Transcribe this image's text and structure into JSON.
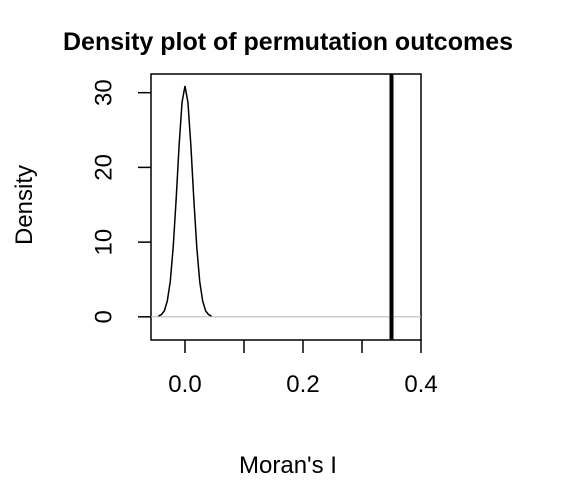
{
  "chart_data": {
    "type": "line",
    "title": "Density plot of permutation outcomes",
    "xlabel": "Moran's I",
    "ylabel": "Density",
    "x": [
      -0.045,
      -0.04,
      -0.035,
      -0.03,
      -0.025,
      -0.02,
      -0.015,
      -0.01,
      -0.005,
      0,
      0.005,
      0.01,
      0.015,
      0.02,
      0.025,
      0.03,
      0.035,
      0.04,
      0.045
    ],
    "series": [
      {
        "color": "#000000",
        "values": [
          0.1,
          0.3,
          0.8,
          2.1,
          4.7,
          9.3,
          15.7,
          22.9,
          28.7,
          30.9,
          28.7,
          22.9,
          15.7,
          9.3,
          4.7,
          2.1,
          0.8,
          0.3,
          0.1
        ]
      }
    ],
    "vline": 0.35,
    "vline_color": "#000000",
    "zero_line_color": "#bebebe",
    "xlim": [
      -0.0576,
      0.4
    ],
    "ylim": [
      -3.1,
      32.5
    ],
    "xticks": [
      {
        "value": 0,
        "label": "0.0"
      },
      {
        "value": 0.1,
        "label": null
      },
      {
        "value": 0.2,
        "label": "0.2"
      },
      {
        "value": 0.3,
        "label": null
      },
      {
        "value": 0.4,
        "label": "0.4"
      }
    ],
    "yticks": [
      0,
      10,
      20,
      30
    ]
  }
}
